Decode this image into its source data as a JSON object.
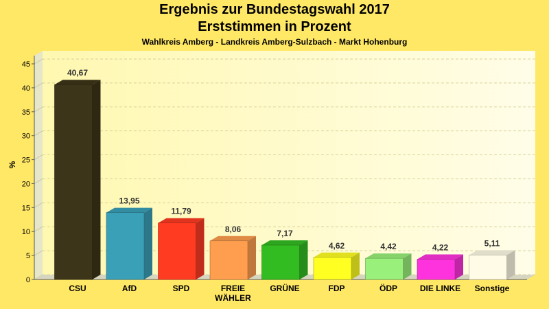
{
  "chart_data": {
    "type": "bar",
    "title": "Ergebnis zur Bundestagswahl 2017",
    "subtitle": "Erststimmen in Prozent",
    "subtitle2": "Wahlkreis Amberg - Landkreis Amberg-Sulzbach - Markt Hohenburg",
    "ylabel": "%",
    "xlabel": "",
    "ylim": [
      0,
      45
    ],
    "yticks": [
      0,
      5,
      10,
      15,
      20,
      25,
      30,
      35,
      40,
      45
    ],
    "grid": true,
    "categories": [
      [
        "CSU"
      ],
      [
        "AfD"
      ],
      [
        "SPD"
      ],
      [
        "FREIE",
        "WÄHLER"
      ],
      [
        "GRÜNE"
      ],
      [
        "FDP"
      ],
      [
        "ÖDP"
      ],
      [
        "DIE LINKE"
      ],
      [
        "Sonstige"
      ]
    ],
    "values": [
      40.67,
      13.95,
      11.79,
      8.06,
      7.17,
      4.62,
      4.42,
      4.22,
      5.11
    ],
    "value_labels": [
      "40,67",
      "13,95",
      "11,79",
      "8,06",
      "7,17",
      "4,62",
      "4,42",
      "4,22",
      "5,11"
    ],
    "colors": [
      "#3d3519",
      "#3aa0b8",
      "#ff3b22",
      "#ff9e4e",
      "#33bb22",
      "#ffff22",
      "#99f07a",
      "#ff33dd",
      "#fffbe6"
    ]
  }
}
